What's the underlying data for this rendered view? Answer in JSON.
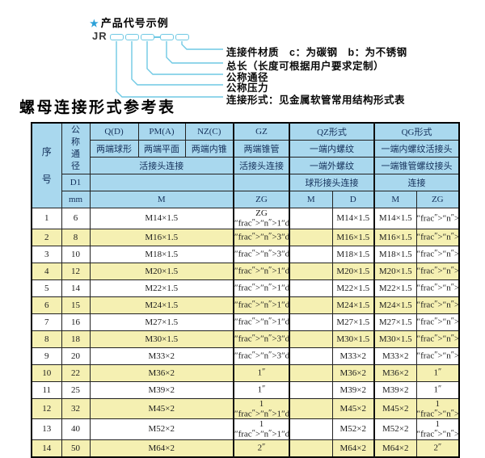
{
  "colors": {
    "header_bg": "#a9d8ee",
    "row_alt_bg": "#f5f0b2",
    "line_cyan": "#6fc9e4",
    "star_blue": "#2aa0d8"
  },
  "diagram": {
    "star": "★",
    "heading": "产品代号示例",
    "prefix": "JR",
    "labels": [
      "连接件材质　c：为碳钢　b：为不锈钢",
      "总长（长度可根据用户要求定制）",
      "公称通径",
      "公称压力",
      "连接形式：见金属软管常用结构形式表"
    ]
  },
  "table_title": "螺母连接形式参考表",
  "table": {
    "header": {
      "seq": "序号",
      "bore": "公称通径",
      "d1": "D1",
      "mm_unit": "mm",
      "q_d": "Q(D)",
      "pm_a": "PM(A)",
      "nz_c": "NZ(C)",
      "gz": "GZ",
      "qz_form": "QZ形式",
      "qg_form": "QG形式",
      "q_desc": "两端球形",
      "pm_desc": "两端平面",
      "nz_desc": "两端内锥",
      "gz_desc": "两端锥管",
      "qz_row2": "一端内螺纹",
      "qg_row2": "一端内螺纹活接头",
      "union_conn": "活接头连接",
      "qz_row3": "一端外螺纹",
      "qg_row3": "一端锥管螺纹接头",
      "qz_row4": "球形接头连接",
      "qg_row4": "连接",
      "m": "M",
      "zg": "ZG",
      "d": "D"
    },
    "rows": [
      {
        "no": "1",
        "mm": "6",
        "m": "M14×1.5",
        "zg": "ZG 1/4\"",
        "qz_m": "",
        "qz_d": "M14×1.5",
        "qg_m": "M14×1.5",
        "qg_zg": "1/4\""
      },
      {
        "no": "2",
        "mm": "8",
        "m": "M16×1.5",
        "zg": "3/8\"",
        "qz_m": "",
        "qz_d": "M16×1.5",
        "qg_m": "M16×1.5",
        "qg_zg": "3/8\""
      },
      {
        "no": "3",
        "mm": "10",
        "m": "M18×1.5",
        "zg": "3/8\"",
        "qz_m": "",
        "qz_d": "M18×1.5",
        "qg_m": "M18×1.5",
        "qg_zg": "3/8\""
      },
      {
        "no": "4",
        "mm": "12",
        "m": "M20×1.5",
        "zg": "1/2\"",
        "qz_m": "",
        "qz_d": "M20×1.5",
        "qg_m": "M20×1.5",
        "qg_zg": "1/2\""
      },
      {
        "no": "5",
        "mm": "14",
        "m": "M22×1.5",
        "zg": "1/2\"",
        "qz_m": "",
        "qz_d": "M22×1.5",
        "qg_m": "M22×1.5",
        "qg_zg": "1/2\""
      },
      {
        "no": "6",
        "mm": "15",
        "m": "M24×1.5",
        "zg": "1/2\"",
        "qz_m": "",
        "qz_d": "M24×1.5",
        "qg_m": "M24×1.5",
        "qg_zg": "1/2\""
      },
      {
        "no": "7",
        "mm": "16",
        "m": "M27×1.5",
        "zg": "1/2\"",
        "qz_m": "",
        "qz_d": "M27×1.5",
        "qg_m": "M27×1.5",
        "qg_zg": "1/2\""
      },
      {
        "no": "8",
        "mm": "18",
        "m": "M30×1.5",
        "zg": "3/4\"",
        "qz_m": "",
        "qz_d": "M30×1.5",
        "qg_m": "M30×1.5",
        "qg_zg": "3/4\""
      },
      {
        "no": "9",
        "mm": "20",
        "m": "M33×2",
        "zg": "3/4\"",
        "qz_m": "",
        "qz_d": "M33×2",
        "qg_m": "M33×2",
        "qg_zg": "3/4\""
      },
      {
        "no": "10",
        "mm": "22",
        "m": "M36×2",
        "zg": "1\"",
        "qz_m": "",
        "qz_d": "M36×2",
        "qg_m": "M36×2",
        "qg_zg": "1\""
      },
      {
        "no": "11",
        "mm": "25",
        "m": "M39×2",
        "zg": "1\"",
        "qz_m": "",
        "qz_d": "M39×2",
        "qg_m": "M39×2",
        "qg_zg": "1\""
      },
      {
        "no": "12",
        "mm": "32",
        "m": "M45×2",
        "zg": "1 1/4\"",
        "qz_m": "",
        "qz_d": "M45×2",
        "qg_m": "M45×2",
        "qg_zg": "1 1/4\""
      },
      {
        "no": "13",
        "mm": "40",
        "m": "M52×2",
        "zg": "1 1/2\"",
        "qz_m": "",
        "qz_d": "M52×2",
        "qg_m": "M52×2",
        "qg_zg": "1 1/2\""
      },
      {
        "no": "14",
        "mm": "50",
        "m": "M64×2",
        "zg": "2\"",
        "qz_m": "",
        "qz_d": "M64×2",
        "qg_m": "M64×2",
        "qg_zg": "2\""
      }
    ]
  }
}
